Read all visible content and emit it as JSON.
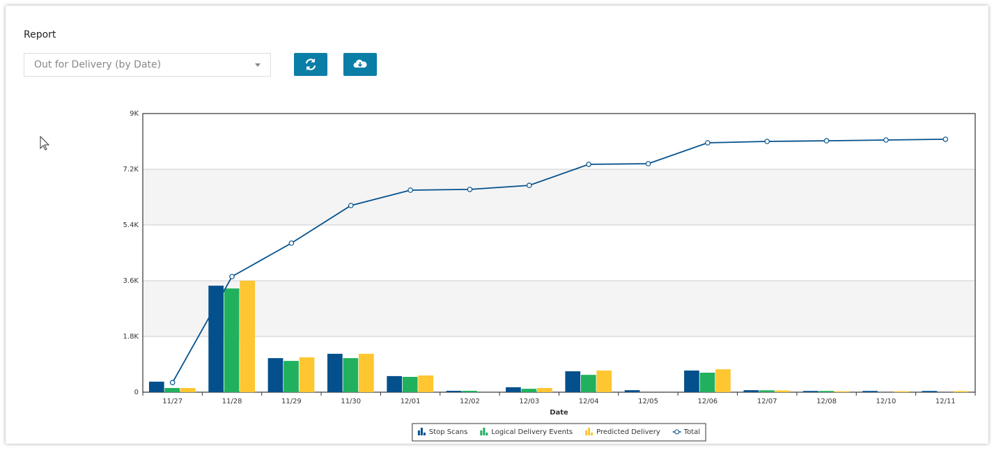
{
  "header": {
    "label": "Report"
  },
  "controls": {
    "report_select": "Out for Delivery (by Date)"
  },
  "chart_data": {
    "type": "bar",
    "x_label": "Date",
    "categories": [
      "11/27",
      "11/28",
      "11/29",
      "11/30",
      "12/01",
      "12/02",
      "12/03",
      "12/04",
      "12/05",
      "12/06",
      "12/07",
      "12/08",
      "12/10",
      "12/11"
    ],
    "series": [
      {
        "name": "Stop Scans",
        "color": "#03508c",
        "values": [
          340,
          3440,
          1100,
          1240,
          520,
          45,
          160,
          675,
          65,
          700,
          65,
          40,
          40,
          40
        ]
      },
      {
        "name": "Logical Delivery Events",
        "color": "#21b15e",
        "values": [
          135,
          3350,
          1010,
          1100,
          495,
          45,
          110,
          560,
          0,
          630,
          60,
          40,
          0,
          0
        ]
      },
      {
        "name": "Predicted Delivery",
        "color": "#fec630",
        "values": [
          135,
          3600,
          1125,
          1240,
          540,
          0,
          135,
          700,
          0,
          740,
          55,
          30,
          30,
          35
        ]
      },
      {
        "name": "Total",
        "color": "#03508c",
        "type": "line",
        "values": [
          310,
          3735,
          4815,
          6030,
          6525,
          6550,
          6680,
          7360,
          7380,
          8055,
          8100,
          8120,
          8145,
          8170
        ]
      }
    ],
    "ylim": [
      0,
      9000
    ],
    "yticks": [
      0,
      {
        "value": 1800,
        "label": "1.8K"
      },
      {
        "value": 3600,
        "label": "3.6K"
      },
      {
        "value": 5400,
        "label": "5.4K"
      },
      {
        "value": 7200,
        "label": "7.2K"
      },
      {
        "value": 9000,
        "label": "9K"
      }
    ],
    "grid": true,
    "legend": "bottom"
  }
}
